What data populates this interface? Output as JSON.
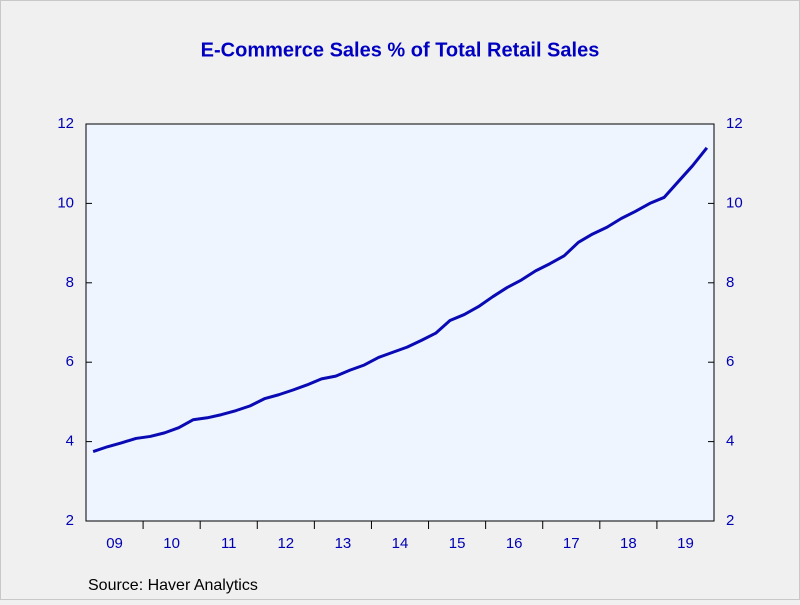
{
  "chart_data": {
    "type": "line",
    "title": "E-Commerce Sales % of Total Retail Sales",
    "source": "Source:  Haver Analytics",
    "year_labels": [
      "09",
      "10",
      "11",
      "12",
      "13",
      "14",
      "15",
      "16",
      "17",
      "18",
      "19"
    ],
    "ylim": [
      2,
      12
    ],
    "yticks": [
      2,
      4,
      6,
      8,
      10,
      12
    ],
    "y2lim": [
      2,
      12
    ],
    "y2ticks": [
      2,
      4,
      6,
      8,
      10,
      12
    ],
    "series": [
      {
        "color": "#0a0ab4",
        "values": [
          3.75,
          3.87,
          3.97,
          4.08,
          4.13,
          4.22,
          4.35,
          4.55,
          4.6,
          4.68,
          4.78,
          4.9,
          5.08,
          5.18,
          5.3,
          5.43,
          5.58,
          5.65,
          5.8,
          5.93,
          6.12,
          6.25,
          6.38,
          6.55,
          6.73,
          7.05,
          7.2,
          7.4,
          7.65,
          7.88,
          8.07,
          8.3,
          8.48,
          8.68,
          9.02,
          9.23,
          9.4,
          9.62,
          9.8,
          10.0,
          10.15,
          10.55,
          10.95,
          11.4
        ]
      }
    ]
  }
}
